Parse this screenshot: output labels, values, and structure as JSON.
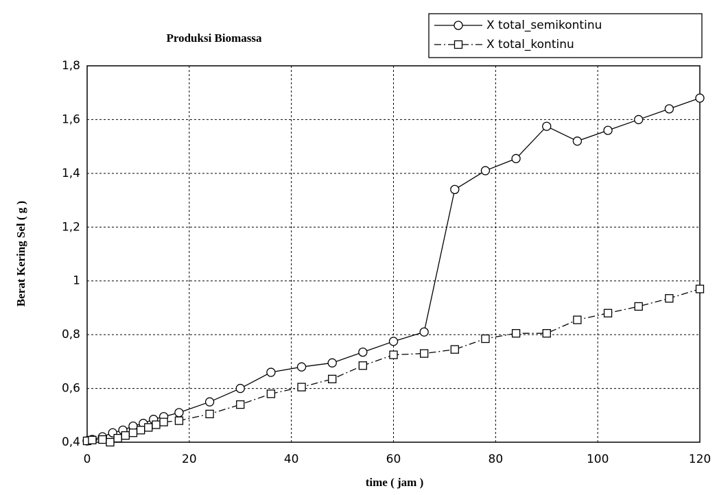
{
  "chart_data": {
    "type": "line",
    "title": "Produksi Biomassa",
    "x_label": "time ( jam )",
    "y_label": "Berat Kering Sel ( g )",
    "xlim": [
      0,
      120
    ],
    "xticks": [
      0,
      20,
      40,
      60,
      80,
      100,
      120
    ],
    "ylim": [
      0.4,
      1.8
    ],
    "yticks": [
      {
        "value": 0.4,
        "label": "0,4"
      },
      {
        "value": 0.6,
        "label": "0,6"
      },
      {
        "value": 0.8,
        "label": "0,8"
      },
      {
        "value": 1,
        "label": "1"
      },
      {
        "value": 1.2,
        "label": "1,2"
      },
      {
        "value": 1.4,
        "label": "1,4"
      },
      {
        "value": 1.6,
        "label": "1,6"
      },
      {
        "value": 1.8,
        "label": "1,8"
      }
    ],
    "grid": true,
    "legend": "top-right",
    "series": [
      {
        "name": "X total_semikontinu",
        "color": "#000000",
        "marker": "circle",
        "dash": "solid",
        "x": [
          0,
          1,
          3,
          5,
          7,
          9,
          11,
          13,
          15,
          18,
          24,
          30,
          36,
          42,
          48,
          54,
          60,
          66,
          72,
          78,
          84,
          90,
          96,
          102,
          108,
          114,
          120
        ],
        "values": [
          0.405,
          0.41,
          0.42,
          0.435,
          0.445,
          0.46,
          0.47,
          0.485,
          0.495,
          0.51,
          0.55,
          0.6,
          0.66,
          0.68,
          0.695,
          0.735,
          0.775,
          0.81,
          1.34,
          1.41,
          1.455,
          1.575,
          1.52,
          1.56,
          1.6,
          1.64,
          1.68
        ]
      },
      {
        "name": "X total_kontinu",
        "color": "#000000",
        "marker": "square",
        "dash": "dashdot",
        "x": [
          0,
          1,
          3,
          4.5,
          6,
          7.5,
          9,
          10.5,
          12,
          13.5,
          15,
          18,
          24,
          30,
          36,
          42,
          48,
          54,
          60,
          66,
          72,
          78,
          84,
          90,
          96,
          102,
          108,
          114,
          120
        ],
        "values": [
          0.405,
          0.408,
          0.41,
          0.4,
          0.415,
          0.425,
          0.435,
          0.445,
          0.455,
          0.465,
          0.475,
          0.48,
          0.505,
          0.54,
          0.58,
          0.605,
          0.635,
          0.685,
          0.725,
          0.73,
          0.745,
          0.785,
          0.805,
          0.805,
          0.855,
          0.88,
          0.905,
          0.935,
          0.97
        ]
      }
    ]
  }
}
